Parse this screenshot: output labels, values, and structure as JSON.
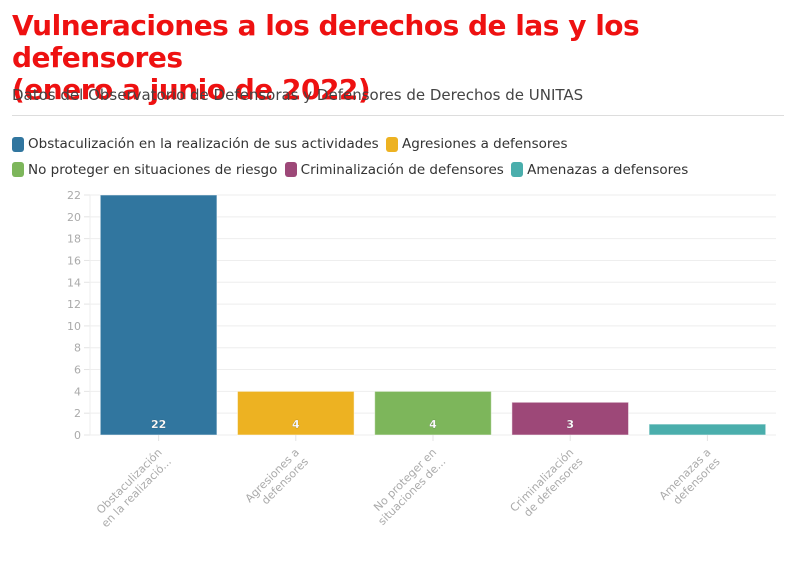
{
  "header": {
    "title_line1": "Vulneraciones a los derechos de las y los defensores",
    "title_line2": "(enero a junio de 2022)",
    "subtitle": "Datos del Observatorio de Defensoras y Defensores de Derechos de UNITAS"
  },
  "legend": [
    {
      "label": "Obstaculización en la realización de sus actividades",
      "color": "#31769f"
    },
    {
      "label": "Agresiones a defensores",
      "color": "#edb222"
    },
    {
      "label": "No proteger en situaciones de riesgo",
      "color": "#7db65b"
    },
    {
      "label": "Criminalización de defensores",
      "color": "#9d4878"
    },
    {
      "label": "Amenazas a defensores",
      "color": "#4aaeac"
    }
  ],
  "chart_data": {
    "type": "bar",
    "title": "Vulneraciones a los derechos de las y los defensores (enero a junio de 2022)",
    "subtitle": "Datos del Observatorio de Defensoras y Defensores de Derechos de UNITAS",
    "categories": [
      "Obstaculización en la realización de sus actividades",
      "Agresiones a defensores",
      "No proteger en situaciones de riesgo",
      "Criminalización de defensores",
      "Amenazas a defensores"
    ],
    "tick_labels": [
      [
        "Obstaculización",
        "en la realizació..."
      ],
      [
        "Agresiones a",
        "defensores"
      ],
      [
        "No proteger en",
        "situaciones de..."
      ],
      [
        "Criminalización",
        "de defensores"
      ],
      [
        "Amenazas a",
        "defensores"
      ]
    ],
    "values": [
      22,
      4,
      4,
      3,
      1
    ],
    "data_labels": [
      "22",
      "4",
      "4",
      "3",
      ""
    ],
    "colors": [
      "#31769f",
      "#edb222",
      "#7db65b",
      "#9d4878",
      "#4aaeac"
    ],
    "xlabel": "",
    "ylabel": "",
    "ylim": [
      0,
      22
    ],
    "yticks": [
      0,
      2,
      4,
      6,
      8,
      10,
      12,
      14,
      16,
      18,
      20,
      22
    ],
    "grid": true,
    "legend_position": "top-left"
  }
}
